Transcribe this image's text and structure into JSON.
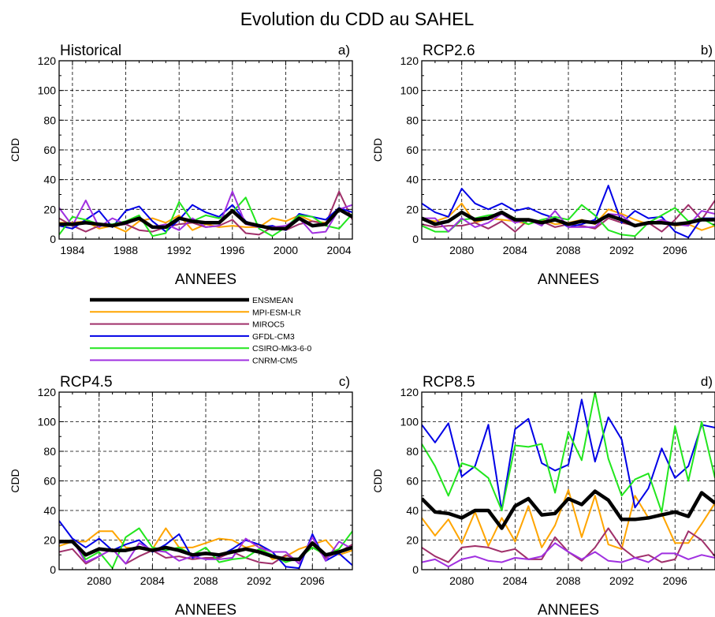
{
  "figure_title": "Evolution du CDD au SAHEL",
  "colors": {
    "ENSMEAN": "#000000",
    "MPI-ESM-LR": "#ffa500",
    "MIROC5": "#a0306a",
    "GFDL-CM3": "#0000e6",
    "CSIRO-Mk3-6-0": "#22e61e",
    "CNRM-CM5": "#a030e0"
  },
  "legend": {
    "entries": [
      "ENSMEAN",
      "MPI-ESM-LR",
      "MIROC5",
      "GFDL-CM3",
      "CSIRO-Mk3-6-0",
      "CNRM-CM5"
    ]
  },
  "chart_data": [
    {
      "type": "line",
      "title": "Historical",
      "panel_label": "a)",
      "xlabel": "ANNEES",
      "ylabel": "CDD",
      "xlim": [
        1983,
        2005
      ],
      "ylim": [
        0,
        120
      ],
      "xticks": [
        1984,
        1988,
        1992,
        1996,
        2000,
        2004
      ],
      "yticks": [
        0,
        20,
        40,
        60,
        80,
        100,
        120
      ],
      "grid": true,
      "x": [
        1983,
        1984,
        1985,
        1986,
        1987,
        1988,
        1989,
        1990,
        1991,
        1992,
        1993,
        1994,
        1995,
        1996,
        1997,
        1998,
        1999,
        2000,
        2001,
        2002,
        2003,
        2004,
        2005
      ],
      "series": [
        {
          "name": "MPI-ESM-LR",
          "values": [
            11,
            11,
            12,
            7,
            9,
            5,
            12,
            14,
            11,
            16,
            6,
            10,
            8,
            9,
            8,
            8,
            14,
            12,
            16,
            12,
            11,
            20,
            16
          ]
        },
        {
          "name": "MIROC5",
          "values": [
            14,
            9,
            5,
            9,
            9,
            10,
            6,
            5,
            8,
            10,
            11,
            8,
            9,
            13,
            4,
            3,
            8,
            6,
            10,
            12,
            10,
            32,
            13
          ]
        },
        {
          "name": "GFDL-CM3",
          "values": [
            9,
            7,
            13,
            19,
            8,
            19,
            22,
            12,
            5,
            13,
            23,
            18,
            15,
            23,
            12,
            8,
            9,
            6,
            17,
            15,
            13,
            21,
            18
          ]
        },
        {
          "name": "CSIRO-Mk3-6-0",
          "values": [
            3,
            15,
            13,
            10,
            10,
            12,
            16,
            2,
            4,
            25,
            12,
            16,
            14,
            18,
            28,
            7,
            2,
            8,
            16,
            15,
            9,
            7,
            17
          ]
        },
        {
          "name": "CNRM-CM5",
          "values": [
            21,
            9,
            26,
            8,
            14,
            10,
            14,
            8,
            10,
            6,
            14,
            8,
            9,
            32,
            10,
            8,
            8,
            9,
            14,
            4,
            5,
            20,
            23
          ]
        },
        {
          "name": "ENSMEAN",
          "values": [
            10,
            10,
            11,
            10,
            9,
            11,
            14,
            8,
            8,
            14,
            12,
            11,
            11,
            19,
            11,
            9,
            7,
            7,
            14,
            9,
            10,
            20,
            15
          ]
        }
      ]
    },
    {
      "type": "line",
      "title": "RCP2.6",
      "panel_label": "b)",
      "xlabel": "ANNEES",
      "ylabel": "CDD",
      "xlim": [
        2077,
        2099
      ],
      "ylim": [
        0,
        120
      ],
      "xticks": [
        2080,
        2084,
        2088,
        2092,
        2096
      ],
      "yticks": [
        0,
        20,
        40,
        60,
        80,
        100,
        120
      ],
      "grid": true,
      "x": [
        2077,
        2078,
        2079,
        2080,
        2081,
        2082,
        2083,
        2084,
        2085,
        2086,
        2087,
        2088,
        2089,
        2090,
        2091,
        2092,
        2093,
        2094,
        2095,
        2096,
        2097,
        2098,
        2099
      ],
      "series": [
        {
          "name": "MPI-ESM-LR",
          "values": [
            13,
            12,
            15,
            24,
            11,
            14,
            13,
            12,
            10,
            13,
            10,
            11,
            13,
            10,
            20,
            17,
            13,
            10,
            12,
            9,
            10,
            6,
            9
          ]
        },
        {
          "name": "MIROC5",
          "values": [
            10,
            8,
            9,
            9,
            11,
            7,
            12,
            5,
            13,
            12,
            8,
            10,
            9,
            7,
            14,
            11,
            9,
            11,
            5,
            13,
            23,
            13,
            26
          ]
        },
        {
          "name": "GFDL-CM3",
          "values": [
            24,
            18,
            15,
            34,
            24,
            20,
            24,
            19,
            21,
            17,
            14,
            8,
            10,
            13,
            36,
            11,
            19,
            14,
            15,
            5,
            1,
            14,
            14
          ]
        },
        {
          "name": "CSIRO-Mk3-6-0",
          "values": [
            9,
            5,
            5,
            13,
            14,
            16,
            17,
            14,
            10,
            13,
            15,
            13,
            23,
            16,
            6,
            3,
            2,
            11,
            16,
            21,
            12,
            14,
            9
          ]
        },
        {
          "name": "CNRM-CM5",
          "values": [
            14,
            14,
            5,
            14,
            8,
            11,
            17,
            11,
            13,
            9,
            19,
            8,
            8,
            8,
            17,
            16,
            9,
            10,
            13,
            10,
            9,
            19,
            17
          ]
        },
        {
          "name": "ENSMEAN",
          "values": [
            14,
            10,
            12,
            18,
            13,
            14,
            18,
            13,
            13,
            11,
            13,
            10,
            12,
            11,
            16,
            13,
            9,
            11,
            11,
            10,
            11,
            13,
            13
          ]
        }
      ]
    },
    {
      "type": "line",
      "title": "RCP4.5",
      "panel_label": "c)",
      "xlabel": "ANNEES",
      "ylabel": "CDD",
      "xlim": [
        2077,
        2099
      ],
      "ylim": [
        0,
        120
      ],
      "xticks": [
        2080,
        2084,
        2088,
        2092,
        2096
      ],
      "yticks": [
        0,
        20,
        40,
        60,
        80,
        100,
        120
      ],
      "grid": true,
      "x": [
        2077,
        2078,
        2079,
        2080,
        2081,
        2082,
        2083,
        2084,
        2085,
        2086,
        2087,
        2088,
        2089,
        2090,
        2091,
        2092,
        2093,
        2094,
        2095,
        2096,
        2097,
        2098,
        2099
      ],
      "series": [
        {
          "name": "MPI-ESM-LR",
          "values": [
            16,
            19,
            19,
            26,
            26,
            15,
            14,
            14,
            28,
            15,
            15,
            18,
            21,
            20,
            15,
            17,
            7,
            9,
            14,
            17,
            20,
            10,
            13
          ]
        },
        {
          "name": "MIROC5",
          "values": [
            12,
            14,
            4,
            9,
            14,
            4,
            9,
            13,
            8,
            9,
            7,
            8,
            8,
            12,
            8,
            5,
            4,
            10,
            6,
            17,
            8,
            12,
            17
          ]
        },
        {
          "name": "GFDL-CM3",
          "values": [
            33,
            21,
            15,
            21,
            13,
            17,
            20,
            12,
            17,
            24,
            8,
            11,
            9,
            14,
            20,
            17,
            12,
            2,
            1,
            24,
            6,
            11,
            3
          ]
        },
        {
          "name": "CSIRO-Mk3-6-0",
          "values": [
            19,
            20,
            7,
            12,
            1,
            22,
            28,
            15,
            13,
            15,
            10,
            15,
            5,
            7,
            8,
            14,
            10,
            5,
            8,
            15,
            10,
            14,
            26
          ]
        },
        {
          "name": "CNRM-CM5",
          "values": [
            18,
            20,
            5,
            9,
            14,
            4,
            18,
            13,
            12,
            6,
            9,
            7,
            7,
            8,
            21,
            15,
            12,
            12,
            4,
            22,
            6,
            19,
            14
          ]
        },
        {
          "name": "ENSMEAN",
          "values": [
            19,
            19,
            10,
            14,
            13,
            13,
            15,
            13,
            15,
            13,
            10,
            11,
            10,
            12,
            14,
            12,
            9,
            7,
            7,
            18,
            10,
            12,
            15
          ]
        }
      ]
    },
    {
      "type": "line",
      "title": "RCP8.5",
      "panel_label": "d)",
      "xlabel": "ANNEES",
      "ylabel": "CDD",
      "xlim": [
        2077,
        2099
      ],
      "ylim": [
        0,
        120
      ],
      "xticks": [
        2080,
        2084,
        2088,
        2092,
        2096
      ],
      "yticks": [
        0,
        20,
        40,
        60,
        80,
        100,
        120
      ],
      "grid": true,
      "x": [
        2077,
        2078,
        2079,
        2080,
        2081,
        2082,
        2083,
        2084,
        2085,
        2086,
        2087,
        2088,
        2089,
        2090,
        2091,
        2092,
        2093,
        2094,
        2095,
        2096,
        2097,
        2098,
        2099
      ],
      "series": [
        {
          "name": "MPI-ESM-LR",
          "values": [
            35,
            23,
            34,
            18,
            39,
            16,
            35,
            19,
            43,
            15,
            30,
            54,
            22,
            50,
            17,
            14,
            50,
            35,
            38,
            18,
            18,
            31,
            45
          ]
        },
        {
          "name": "MIROC5",
          "values": [
            15,
            9,
            5,
            15,
            16,
            15,
            12,
            14,
            7,
            7,
            22,
            12,
            6,
            15,
            28,
            15,
            8,
            10,
            5,
            7,
            26,
            20,
            9
          ]
        },
        {
          "name": "GFDL-CM3",
          "values": [
            98,
            86,
            99,
            63,
            70,
            98,
            40,
            95,
            102,
            72,
            67,
            71,
            115,
            73,
            103,
            88,
            42,
            55,
            82,
            62,
            70,
            98,
            96
          ]
        },
        {
          "name": "CSIRO-Mk3-6-0",
          "values": [
            85,
            70,
            50,
            72,
            69,
            62,
            40,
            84,
            83,
            85,
            52,
            93,
            74,
            120,
            75,
            50,
            61,
            65,
            39,
            97,
            60,
            100,
            62
          ]
        },
        {
          "name": "CNRM-CM5",
          "values": [
            5,
            7,
            2,
            7,
            9,
            6,
            5,
            8,
            7,
            9,
            18,
            12,
            7,
            12,
            6,
            5,
            8,
            5,
            11,
            11,
            7,
            10,
            8
          ]
        },
        {
          "name": "ENSMEAN",
          "values": [
            48,
            39,
            38,
            35,
            40,
            40,
            28,
            43,
            48,
            37,
            38,
            48,
            44,
            53,
            47,
            34,
            34,
            35,
            37,
            39,
            36,
            52,
            45
          ]
        }
      ]
    }
  ]
}
